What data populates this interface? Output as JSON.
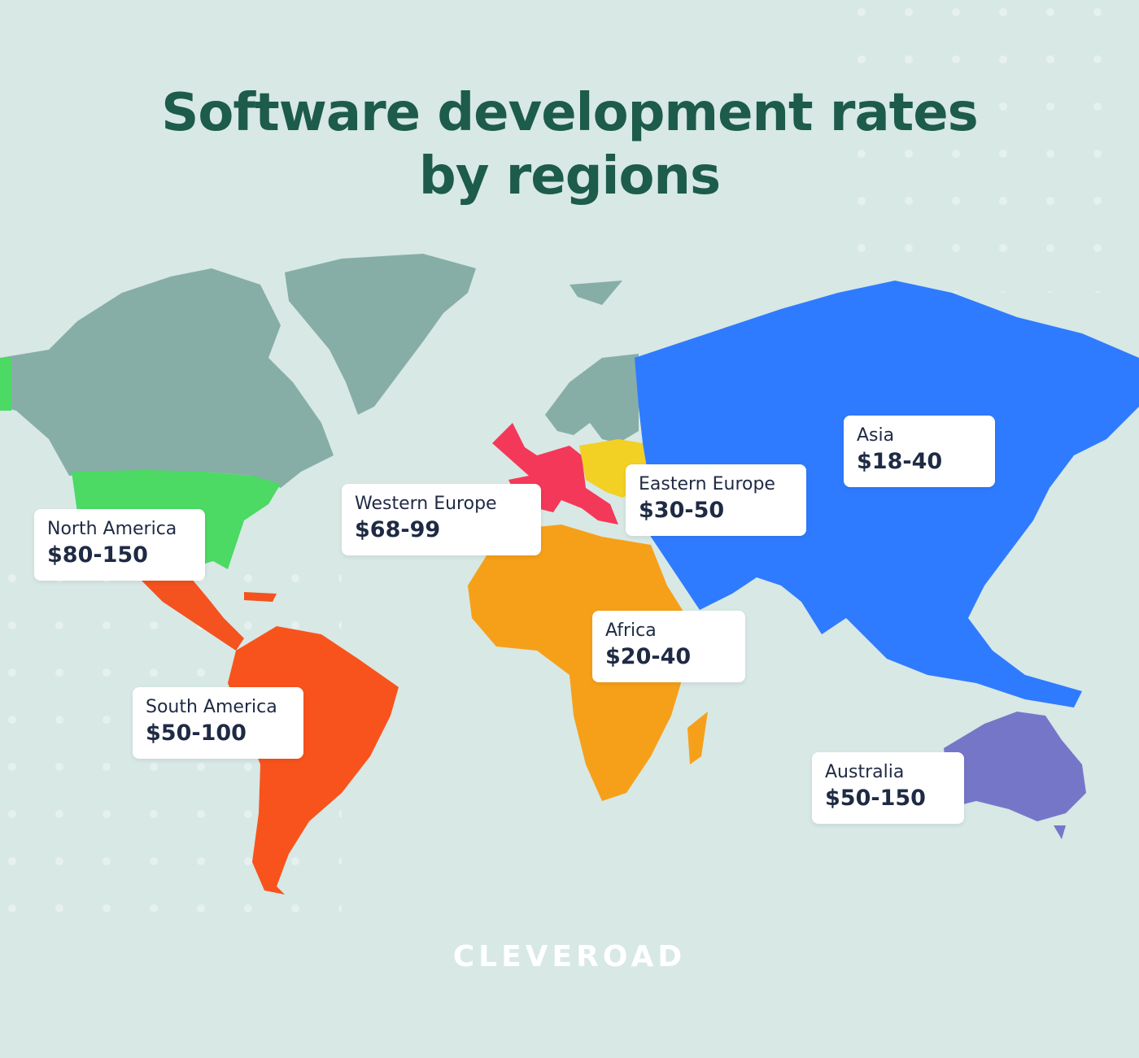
{
  "header": {
    "title": "Software development rates by regions"
  },
  "regions": [
    {
      "name": "North America",
      "rate": "$80-150"
    },
    {
      "name": "South America",
      "rate": "$50-100"
    },
    {
      "name": "Western Europe",
      "rate": "$68-99"
    },
    {
      "name": "Eastern Europe",
      "rate": "$30-50"
    },
    {
      "name": "Asia",
      "rate": "$18-40"
    },
    {
      "name": "Africa",
      "rate": "$20-40"
    },
    {
      "name": "Australia",
      "rate": "$50-150"
    }
  ],
  "footer": {
    "brand": "CLEVEROAD"
  }
}
